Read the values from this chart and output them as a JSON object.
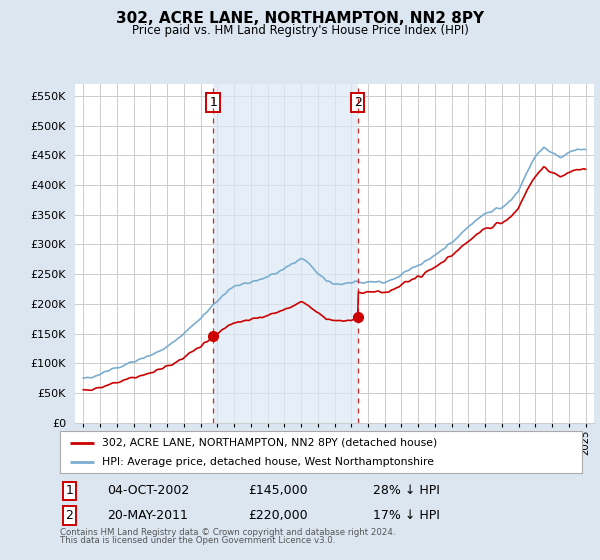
{
  "title": "302, ACRE LANE, NORTHAMPTON, NN2 8PY",
  "subtitle": "Price paid vs. HM Land Registry's House Price Index (HPI)",
  "footnote1": "Contains HM Land Registry data © Crown copyright and database right 2024.",
  "footnote2": "This data is licensed under the Open Government Licence v3.0.",
  "legend1": "302, ACRE LANE, NORTHAMPTON, NN2 8PY (detached house)",
  "legend2": "HPI: Average price, detached house, West Northamptonshire",
  "marker1_label": "1",
  "marker1_date": "04-OCT-2002",
  "marker1_price": "£145,000",
  "marker1_hpi": "28% ↓ HPI",
  "marker2_label": "2",
  "marker2_date": "20-MAY-2011",
  "marker2_price": "£220,000",
  "marker2_hpi": "17% ↓ HPI",
  "red_color": "#cc0000",
  "blue_color": "#7aadcf",
  "background_color": "#dce6f1",
  "plot_bg": "#ffffff",
  "dashed_line_color": "#cc0000",
  "sale1_year": 2002.75,
  "sale1_price": 145000,
  "sale2_year": 2011.38,
  "sale2_price": 220000,
  "ylim_min": 0,
  "ylim_max": 570000,
  "xlim_min": 1994.5,
  "xlim_max": 2025.5,
  "hpi_anchors_x": [
    1995,
    1995.5,
    1996,
    1996.5,
    1997,
    1997.5,
    1998,
    1998.5,
    1999,
    1999.5,
    2000,
    2000.5,
    2001,
    2001.5,
    2002,
    2002.5,
    2003,
    2003.5,
    2004,
    2004.5,
    2005,
    2005.5,
    2006,
    2006.5,
    2007,
    2007.5,
    2008,
    2008.5,
    2009,
    2009.5,
    2010,
    2010.5,
    2011,
    2011.5,
    2012,
    2012.5,
    2013,
    2013.5,
    2014,
    2014.5,
    2015,
    2015.5,
    2016,
    2016.5,
    2017,
    2017.5,
    2018,
    2018.5,
    2019,
    2019.5,
    2020,
    2020.5,
    2021,
    2021.5,
    2022,
    2022.5,
    2023,
    2023.5,
    2024,
    2024.5,
    2025
  ],
  "hpi_anchors_y": [
    75000,
    77000,
    82000,
    87000,
    93000,
    98000,
    103000,
    108000,
    114000,
    120000,
    128000,
    138000,
    150000,
    163000,
    176000,
    190000,
    205000,
    218000,
    228000,
    234000,
    237000,
    240000,
    245000,
    252000,
    258000,
    268000,
    278000,
    268000,
    252000,
    238000,
    235000,
    232000,
    235000,
    238000,
    237000,
    236000,
    238000,
    242000,
    250000,
    258000,
    265000,
    272000,
    282000,
    292000,
    305000,
    318000,
    330000,
    342000,
    352000,
    358000,
    362000,
    372000,
    390000,
    420000,
    450000,
    465000,
    455000,
    448000,
    455000,
    462000,
    458000
  ]
}
